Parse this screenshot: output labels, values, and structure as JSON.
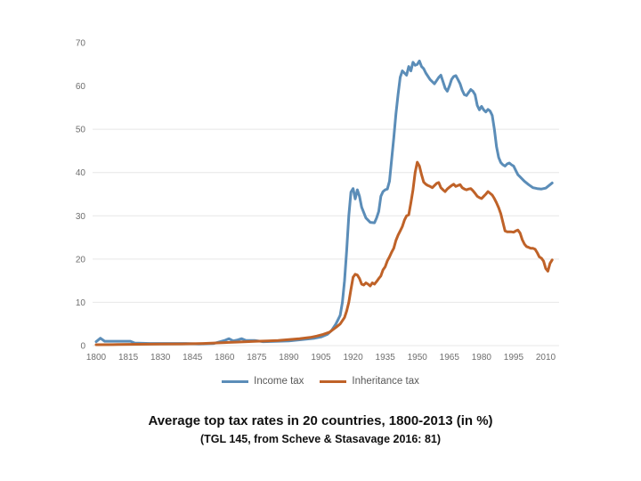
{
  "caption": {
    "title": "Average top tax rates in 20 countries, 1800-2013 (in %)",
    "source": "(TGL 145, from Scheve & Stasavage 2016: 81)"
  },
  "colors": {
    "income_line": "#5b8db8",
    "inheritance_line": "#bf6228",
    "gridline": "#e7e7e7",
    "tick_text": "#6e6e6e",
    "legend_text": "#595959",
    "caption_text": "#111111",
    "background": "#ffffff"
  },
  "chart_data": {
    "type": "line",
    "title": "",
    "xlabel": "",
    "ylabel": "",
    "xlim": [
      1800,
      2013
    ],
    "ylim": [
      0,
      70
    ],
    "x_ticks": [
      1800,
      1815,
      1830,
      1845,
      1860,
      1875,
      1890,
      1905,
      1920,
      1935,
      1950,
      1965,
      1980,
      1995,
      2010
    ],
    "y_ticks": [
      0,
      10,
      20,
      30,
      40,
      50,
      60,
      70
    ],
    "y_grid_values": [
      0,
      10,
      20,
      30,
      40,
      50
    ],
    "grid": "horizontal only, light gray, visible up to 50",
    "legend_position": "bottom-center",
    "series": [
      {
        "name": "Income tax",
        "color": "#5b8db8",
        "points": [
          [
            1800,
            0.9
          ],
          [
            1802,
            1.7
          ],
          [
            1804,
            1.0
          ],
          [
            1808,
            1.0
          ],
          [
            1812,
            1.0
          ],
          [
            1816,
            1.0
          ],
          [
            1818,
            0.6
          ],
          [
            1825,
            0.5
          ],
          [
            1835,
            0.5
          ],
          [
            1842,
            0.5
          ],
          [
            1848,
            0.4
          ],
          [
            1855,
            0.5
          ],
          [
            1860,
            1.2
          ],
          [
            1862,
            1.6
          ],
          [
            1864,
            1.1
          ],
          [
            1866,
            1.3
          ],
          [
            1868,
            1.6
          ],
          [
            1870,
            1.2
          ],
          [
            1874,
            1.2
          ],
          [
            1878,
            0.9
          ],
          [
            1885,
            1.0
          ],
          [
            1890,
            1.1
          ],
          [
            1894,
            1.3
          ],
          [
            1898,
            1.5
          ],
          [
            1902,
            1.7
          ],
          [
            1905,
            2.0
          ],
          [
            1908,
            2.6
          ],
          [
            1910,
            3.5
          ],
          [
            1912,
            5.0
          ],
          [
            1914,
            7.0
          ],
          [
            1915,
            10.0
          ],
          [
            1916,
            15.0
          ],
          [
            1917,
            22.0
          ],
          [
            1918,
            30.0
          ],
          [
            1919,
            35.5
          ],
          [
            1920,
            36.3
          ],
          [
            1921,
            33.9
          ],
          [
            1922,
            36.0
          ],
          [
            1923,
            34.5
          ],
          [
            1924,
            32.0
          ],
          [
            1926,
            29.5
          ],
          [
            1928,
            28.5
          ],
          [
            1930,
            28.4
          ],
          [
            1931,
            29.5
          ],
          [
            1932,
            31.0
          ],
          [
            1933,
            34.5
          ],
          [
            1934,
            35.6
          ],
          [
            1935,
            36.0
          ],
          [
            1936,
            36.2
          ],
          [
            1937,
            38.0
          ],
          [
            1938,
            43.0
          ],
          [
            1939,
            48.0
          ],
          [
            1940,
            53.5
          ],
          [
            1941,
            58.0
          ],
          [
            1942,
            62.0
          ],
          [
            1943,
            63.5
          ],
          [
            1944,
            63.0
          ],
          [
            1945,
            62.5
          ],
          [
            1946,
            64.5
          ],
          [
            1947,
            63.5
          ],
          [
            1948,
            65.5
          ],
          [
            1949,
            64.8
          ],
          [
            1950,
            65.0
          ],
          [
            1951,
            65.8
          ],
          [
            1952,
            64.5
          ],
          [
            1953,
            64.0
          ],
          [
            1954,
            63.0
          ],
          [
            1956,
            61.5
          ],
          [
            1958,
            60.5
          ],
          [
            1960,
            62.0
          ],
          [
            1961,
            62.5
          ],
          [
            1962,
            61.0
          ],
          [
            1963,
            59.5
          ],
          [
            1964,
            58.8
          ],
          [
            1965,
            60.0
          ],
          [
            1966,
            61.5
          ],
          [
            1967,
            62.2
          ],
          [
            1968,
            62.4
          ],
          [
            1969,
            61.5
          ],
          [
            1970,
            60.5
          ],
          [
            1971,
            59.0
          ],
          [
            1972,
            58.0
          ],
          [
            1973,
            57.8
          ],
          [
            1974,
            58.5
          ],
          [
            1975,
            59.2
          ],
          [
            1976,
            58.8
          ],
          [
            1977,
            58.0
          ],
          [
            1978,
            55.5
          ],
          [
            1979,
            54.5
          ],
          [
            1980,
            55.3
          ],
          [
            1981,
            54.5
          ],
          [
            1982,
            54.0
          ],
          [
            1983,
            54.6
          ],
          [
            1984,
            54.2
          ],
          [
            1985,
            53.2
          ],
          [
            1986,
            50.0
          ],
          [
            1987,
            46.0
          ],
          [
            1988,
            43.5
          ],
          [
            1989,
            42.3
          ],
          [
            1990,
            41.8
          ],
          [
            1991,
            41.5
          ],
          [
            1992,
            42.0
          ],
          [
            1993,
            42.2
          ],
          [
            1994,
            41.8
          ],
          [
            1995,
            41.5
          ],
          [
            1996,
            40.5
          ],
          [
            1997,
            39.5
          ],
          [
            1998,
            39.0
          ],
          [
            2000,
            38.0
          ],
          [
            2002,
            37.2
          ],
          [
            2004,
            36.5
          ],
          [
            2006,
            36.3
          ],
          [
            2008,
            36.2
          ],
          [
            2010,
            36.4
          ],
          [
            2011,
            36.8
          ],
          [
            2013,
            37.6
          ]
        ]
      },
      {
        "name": "Inheritance tax",
        "color": "#bf6228",
        "points": [
          [
            1800,
            0.2
          ],
          [
            1810,
            0.25
          ],
          [
            1820,
            0.3
          ],
          [
            1830,
            0.35
          ],
          [
            1840,
            0.4
          ],
          [
            1850,
            0.5
          ],
          [
            1855,
            0.6
          ],
          [
            1860,
            0.7
          ],
          [
            1865,
            0.8
          ],
          [
            1870,
            0.9
          ],
          [
            1875,
            1.0
          ],
          [
            1880,
            1.1
          ],
          [
            1885,
            1.2
          ],
          [
            1890,
            1.4
          ],
          [
            1895,
            1.6
          ],
          [
            1900,
            1.9
          ],
          [
            1903,
            2.2
          ],
          [
            1906,
            2.6
          ],
          [
            1909,
            3.1
          ],
          [
            1912,
            4.2
          ],
          [
            1914,
            5.0
          ],
          [
            1916,
            6.5
          ],
          [
            1917,
            8.0
          ],
          [
            1918,
            10.0
          ],
          [
            1919,
            13.0
          ],
          [
            1920,
            15.8
          ],
          [
            1921,
            16.5
          ],
          [
            1922,
            16.3
          ],
          [
            1923,
            15.5
          ],
          [
            1924,
            14.2
          ],
          [
            1925,
            14.0
          ],
          [
            1926,
            14.5
          ],
          [
            1927,
            14.2
          ],
          [
            1928,
            13.8
          ],
          [
            1929,
            14.5
          ],
          [
            1930,
            14.2
          ],
          [
            1931,
            14.8
          ],
          [
            1932,
            15.5
          ],
          [
            1933,
            16.1
          ],
          [
            1934,
            17.5
          ],
          [
            1935,
            18.2
          ],
          [
            1936,
            19.6
          ],
          [
            1937,
            20.5
          ],
          [
            1938,
            21.6
          ],
          [
            1939,
            22.5
          ],
          [
            1940,
            24.3
          ],
          [
            1941,
            25.5
          ],
          [
            1942,
            26.5
          ],
          [
            1943,
            27.5
          ],
          [
            1944,
            29.0
          ],
          [
            1945,
            30.0
          ],
          [
            1946,
            30.2
          ],
          [
            1947,
            33.0
          ],
          [
            1948,
            36.0
          ],
          [
            1949,
            40.0
          ],
          [
            1950,
            42.4
          ],
          [
            1951,
            41.5
          ],
          [
            1952,
            39.5
          ],
          [
            1953,
            37.8
          ],
          [
            1954,
            37.3
          ],
          [
            1955,
            37.0
          ],
          [
            1956,
            36.8
          ],
          [
            1957,
            36.5
          ],
          [
            1958,
            37.0
          ],
          [
            1959,
            37.5
          ],
          [
            1960,
            37.7
          ],
          [
            1961,
            36.5
          ],
          [
            1962,
            36.0
          ],
          [
            1963,
            35.6
          ],
          [
            1964,
            36.2
          ],
          [
            1965,
            36.6
          ],
          [
            1966,
            37.0
          ],
          [
            1967,
            37.3
          ],
          [
            1968,
            36.8
          ],
          [
            1969,
            37.0
          ],
          [
            1970,
            37.2
          ],
          [
            1971,
            36.5
          ],
          [
            1972,
            36.2
          ],
          [
            1973,
            36.0
          ],
          [
            1974,
            36.2
          ],
          [
            1975,
            36.3
          ],
          [
            1976,
            35.8
          ],
          [
            1977,
            35.2
          ],
          [
            1978,
            34.5
          ],
          [
            1979,
            34.2
          ],
          [
            1980,
            34.0
          ],
          [
            1981,
            34.5
          ],
          [
            1982,
            35.0
          ],
          [
            1983,
            35.6
          ],
          [
            1984,
            35.2
          ],
          [
            1985,
            34.8
          ],
          [
            1986,
            34.0
          ],
          [
            1987,
            33.0
          ],
          [
            1988,
            31.9
          ],
          [
            1989,
            30.5
          ],
          [
            1990,
            28.5
          ],
          [
            1991,
            26.5
          ],
          [
            1992,
            26.3
          ],
          [
            1993,
            26.3
          ],
          [
            1994,
            26.3
          ],
          [
            1995,
            26.2
          ],
          [
            1996,
            26.5
          ],
          [
            1997,
            26.7
          ],
          [
            1998,
            26.0
          ],
          [
            1999,
            24.5
          ],
          [
            2000,
            23.5
          ],
          [
            2001,
            22.9
          ],
          [
            2002,
            22.7
          ],
          [
            2003,
            22.5
          ],
          [
            2004,
            22.5
          ],
          [
            2005,
            22.3
          ],
          [
            2006,
            21.5
          ],
          [
            2007,
            20.5
          ],
          [
            2008,
            20.2
          ],
          [
            2009,
            19.5
          ],
          [
            2010,
            17.8
          ],
          [
            2011,
            17.2
          ],
          [
            2012,
            19.0
          ],
          [
            2013,
            19.8
          ]
        ]
      }
    ]
  }
}
